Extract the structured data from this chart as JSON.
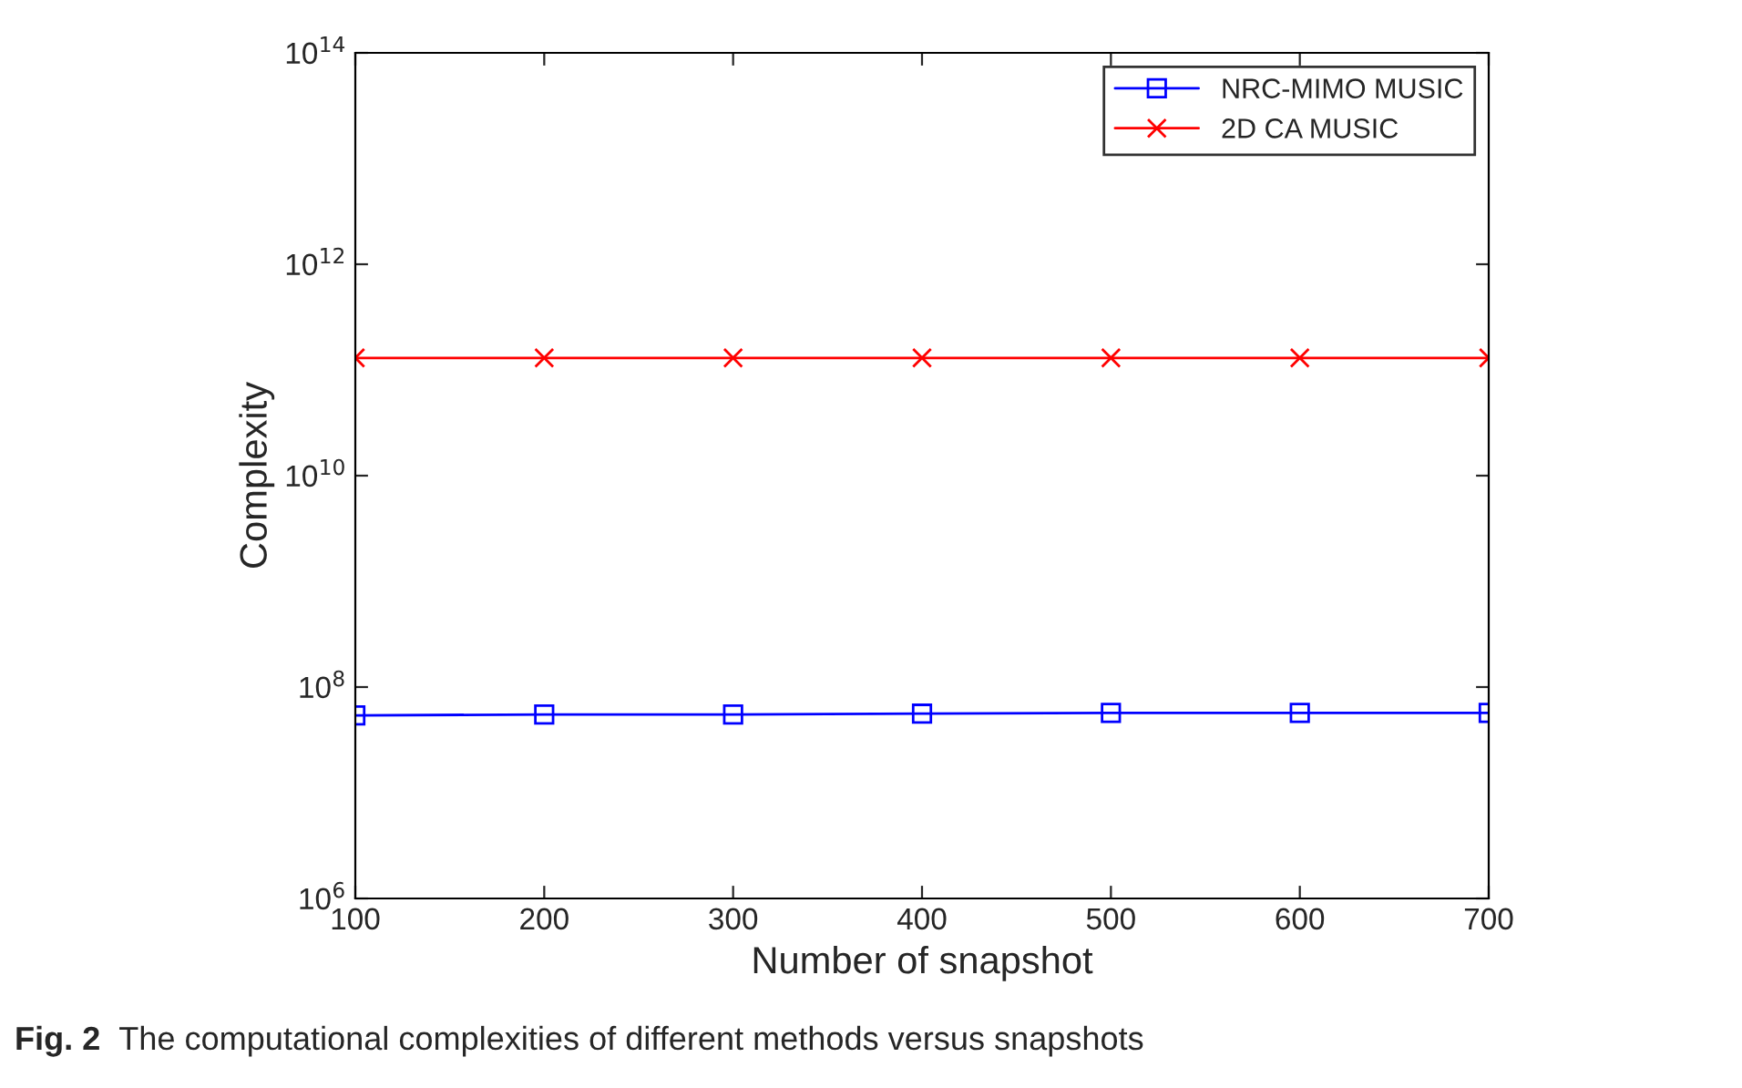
{
  "chart_data": {
    "type": "line",
    "xlabel": "Number of snapshot",
    "ylabel": "Complexity",
    "x": [
      100,
      200,
      300,
      400,
      500,
      600,
      700
    ],
    "series": [
      {
        "name": "NRC-MIMO MUSIC",
        "color": "#0000ff",
        "marker": "square",
        "values": [
          54000000.0,
          55000000.0,
          55000000.0,
          56000000.0,
          57000000.0,
          57000000.0,
          57000000.0
        ]
      },
      {
        "name": "2D CA MUSIC",
        "color": "#ff0000",
        "marker": "cross",
        "values": [
          130000000000.0,
          130000000000.0,
          130000000000.0,
          130000000000.0,
          130000000000.0,
          130000000000.0,
          130000000000.0
        ]
      }
    ],
    "log": "y",
    "xlim": [
      100,
      700
    ],
    "xticks": [
      100,
      200,
      300,
      400,
      500,
      600,
      700
    ],
    "ylim": [
      1000000.0,
      100000000000000.0
    ],
    "yticks": [
      {
        "value": 1000000.0,
        "label": "10$^{6}$"
      },
      {
        "value": 100000000.0,
        "label": "10$^{8}$"
      },
      {
        "value": 10000000000.0,
        "label": "10$^{10}$"
      },
      {
        "value": 1000000000000.0,
        "label": "10$^{12}$"
      },
      {
        "value": 100000000000000.0,
        "label": "10$^{14}$"
      }
    ],
    "grid": false,
    "legend": "top right",
    "line_style": "solid",
    "annotations": [
      "Fig. 2",
      "The computational complexities of different methods versus snapshots"
    ]
  }
}
